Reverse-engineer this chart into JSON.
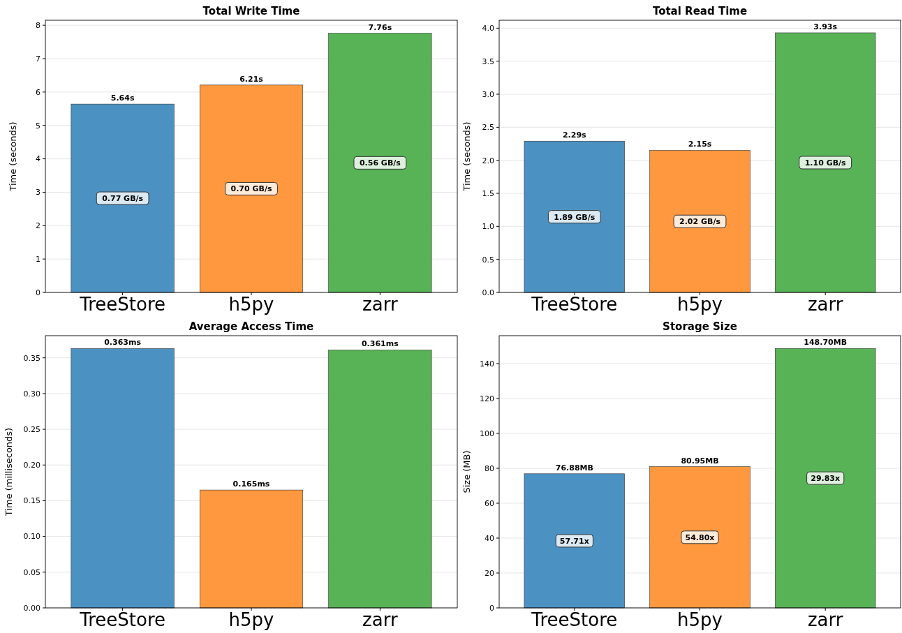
{
  "chart_data": [
    {
      "type": "bar",
      "title": "Total Write Time",
      "ylabel": "Time (seconds)",
      "categories": [
        "TreeStore",
        "h5py",
        "zarr"
      ],
      "values": [
        5.64,
        6.21,
        7.76
      ],
      "colors": [
        "#4b91c2",
        "#ff983e",
        "#57b356"
      ],
      "value_labels": [
        "5.64s",
        "6.21s",
        "7.76s"
      ],
      "ylim": [
        0,
        8.15
      ],
      "yticks": [
        0,
        1,
        2,
        3,
        4,
        5,
        6,
        7,
        8
      ],
      "grid": "y",
      "annotations": [
        "0.77 GB/s",
        "0.70 GB/s",
        "0.56 GB/s"
      ]
    },
    {
      "type": "bar",
      "title": "Total Read Time",
      "ylabel": "Time (seconds)",
      "categories": [
        "TreeStore",
        "h5py",
        "zarr"
      ],
      "values": [
        2.29,
        2.15,
        3.93
      ],
      "colors": [
        "#4b91c2",
        "#ff983e",
        "#57b356"
      ],
      "value_labels": [
        "2.29s",
        "2.15s",
        "3.93s"
      ],
      "ylim": [
        0,
        4.12
      ],
      "yticks": [
        {
          "value": 0,
          "label": "0.0"
        },
        0.5,
        {
          "value": 1,
          "label": "1.0"
        },
        1.5,
        {
          "value": 2,
          "label": "2.0"
        },
        2.5,
        {
          "value": 3,
          "label": "3.0"
        },
        3.5,
        {
          "value": 4,
          "label": "4.0"
        }
      ],
      "grid": "y",
      "annotations": [
        "1.89 GB/s",
        "2.02 GB/s",
        "1.10 GB/s"
      ]
    },
    {
      "type": "bar",
      "title": "Average Access Time",
      "ylabel": "Time (milliseconds)",
      "categories": [
        "TreeStore",
        "h5py",
        "zarr"
      ],
      "values": [
        0.363,
        0.165,
        0.361
      ],
      "colors": [
        "#4b91c2",
        "#ff983e",
        "#57b356"
      ],
      "value_labels": [
        "0.363ms",
        "0.165ms",
        "0.361ms"
      ],
      "ylim": [
        0,
        0.381
      ],
      "yticks": [
        {
          "value": 0,
          "label": "0.00"
        },
        0.05,
        {
          "value": 0.1,
          "label": "0.10"
        },
        0.15,
        {
          "value": 0.2,
          "label": "0.20"
        },
        0.25,
        {
          "value": 0.3,
          "label": "0.30"
        },
        0.35
      ],
      "grid": "y"
    },
    {
      "type": "bar",
      "title": "Storage Size",
      "ylabel": "Size (MB)",
      "categories": [
        "TreeStore",
        "h5py",
        "zarr"
      ],
      "values": [
        76.88,
        80.95,
        148.7
      ],
      "colors": [
        "#4b91c2",
        "#ff983e",
        "#57b356"
      ],
      "value_labels": [
        "76.88MB",
        "80.95MB",
        "148.70MB"
      ],
      "ylim": [
        0,
        156
      ],
      "yticks": [
        0,
        20,
        40,
        60,
        80,
        100,
        120,
        140
      ],
      "grid": "y",
      "annotations": [
        "57.71x",
        "54.80x",
        "29.83x"
      ]
    }
  ]
}
